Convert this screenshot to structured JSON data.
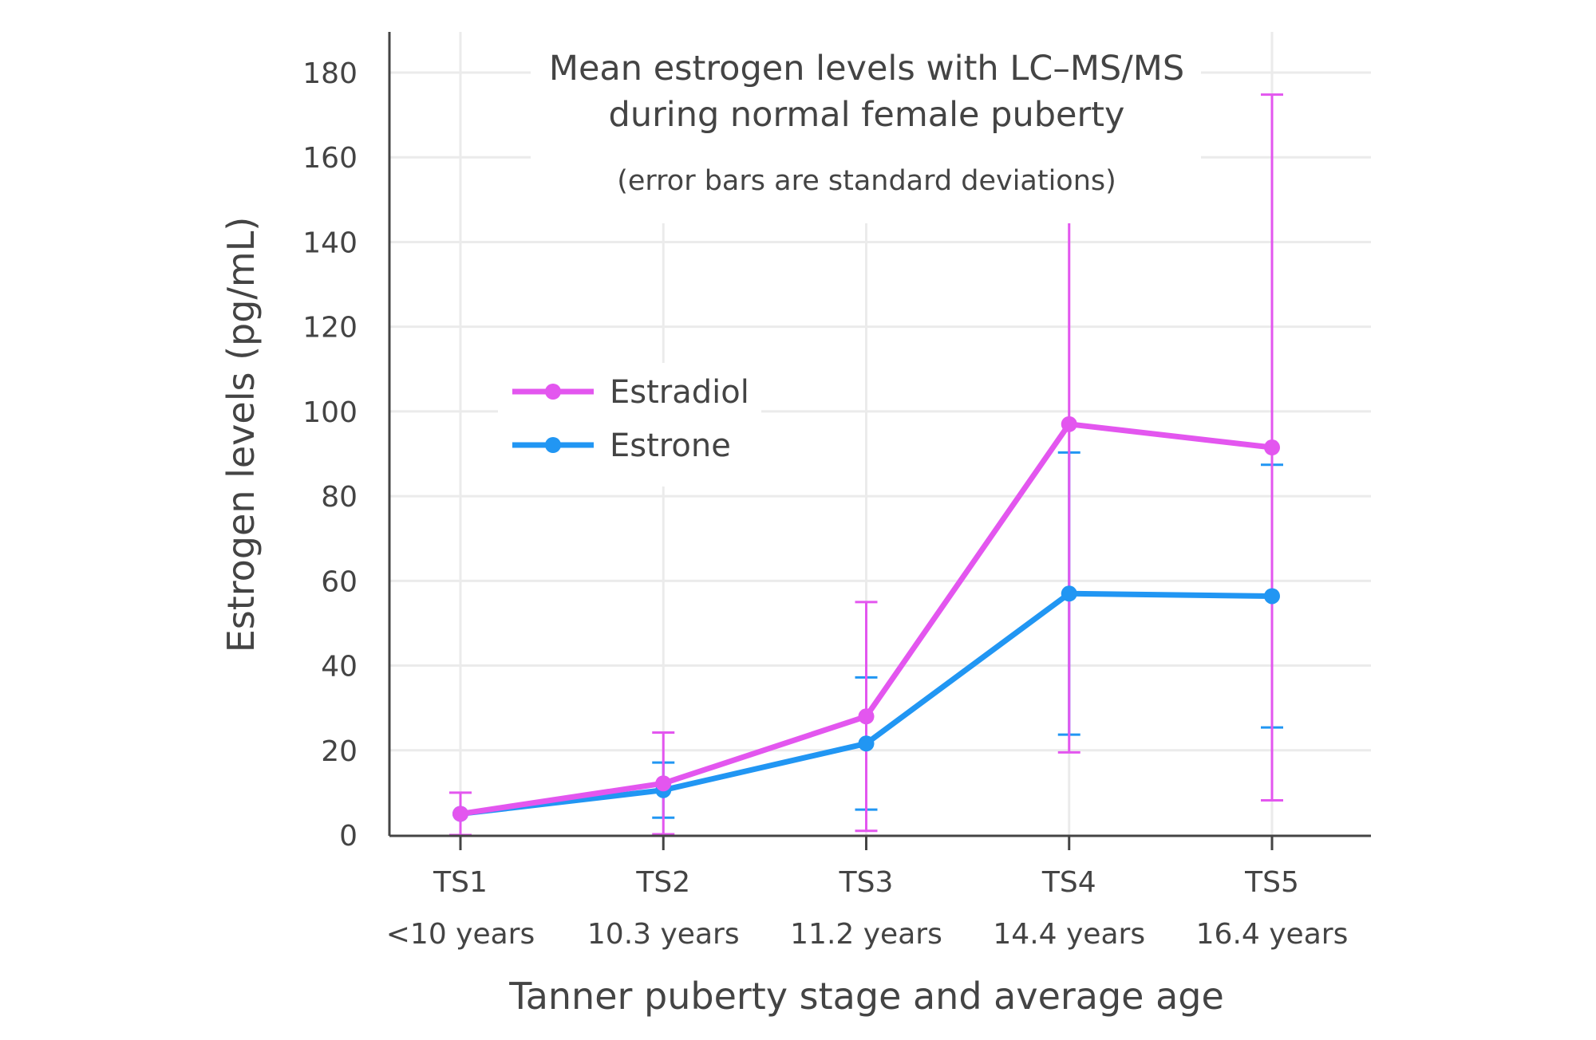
{
  "chart_data": {
    "type": "line",
    "title": "Mean estrogen levels with LC–MS/MS",
    "title_line2": "during normal female puberty",
    "subtitle": "(error bars are standard deviations)",
    "xlabel": "Tanner puberty stage and average age",
    "ylabel": "Estrogen levels (pg/mL)",
    "categories": [
      {
        "stage": "TS1",
        "age": "<10 years"
      },
      {
        "stage": "TS2",
        "age": "10.3 years"
      },
      {
        "stage": "TS3",
        "age": "11.2 years"
      },
      {
        "stage": "TS4",
        "age": "14.4 years"
      },
      {
        "stage": "TS5",
        "age": "16.4 years"
      }
    ],
    "ylim": [
      0,
      190
    ],
    "yticks": [
      0,
      20,
      40,
      60,
      80,
      100,
      120,
      140,
      160,
      180
    ],
    "grid": true,
    "legend_position": "left-middle",
    "series": [
      {
        "name": "Estradiol",
        "color": "#e356ef",
        "values": [
          5,
          12.2,
          28,
          97,
          91.5
        ],
        "sd": [
          5,
          12,
          27,
          77.5,
          83.3
        ]
      },
      {
        "name": "Estrone",
        "color": "#2196f3",
        "values": [
          5,
          10.6,
          21.6,
          57,
          56.4
        ],
        "sd": [
          0,
          6.5,
          15.6,
          33.3,
          31
        ]
      }
    ]
  }
}
